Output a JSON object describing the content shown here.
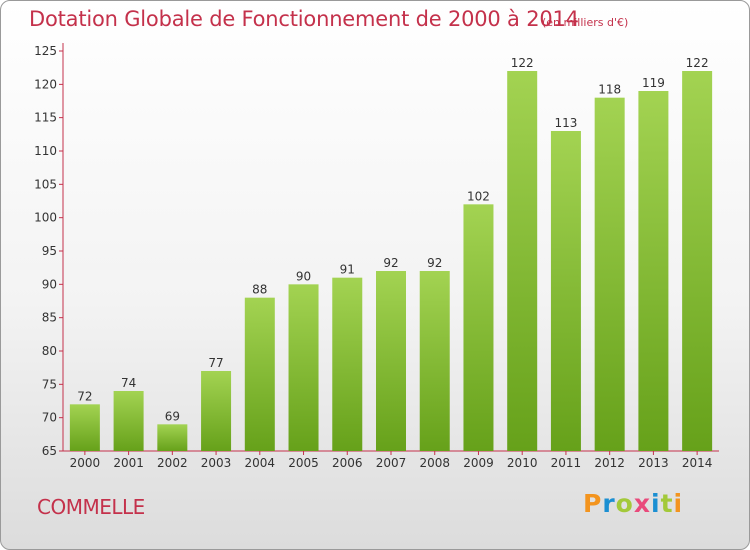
{
  "header": {
    "title": "Dotation Globale de Fonctionnement de 2000 à 2014",
    "unit": "(en milliers d'€)"
  },
  "footer": {
    "commune": "COMMELLE",
    "brand": "Proxiti"
  },
  "colors": {
    "accent": "#c4314b",
    "bar_light": "#a3d352",
    "bar_dark": "#66a11a",
    "logo_letters": [
      "#f3941e",
      "#1b8fd2",
      "#a3c93a",
      "#e94a7b",
      "#1b8fd2",
      "#a3c93a",
      "#f3941e"
    ]
  },
  "chart_data": {
    "type": "bar",
    "title": "Dotation Globale de Fonctionnement de 2000 à 2014",
    "subtitle": "(en milliers d'€)",
    "xlabel": "",
    "ylabel": "",
    "ylim": [
      65,
      125
    ],
    "yticks": [
      65,
      70,
      75,
      80,
      85,
      90,
      95,
      100,
      105,
      110,
      115,
      120,
      125
    ],
    "grid": false,
    "categories": [
      "2000",
      "2001",
      "2002",
      "2003",
      "2004",
      "2005",
      "2006",
      "2007",
      "2008",
      "2009",
      "2010",
      "2011",
      "2012",
      "2013",
      "2014"
    ],
    "values": [
      72,
      74,
      69,
      77,
      88,
      90,
      91,
      92,
      92,
      102,
      122,
      113,
      118,
      119,
      122
    ]
  }
}
